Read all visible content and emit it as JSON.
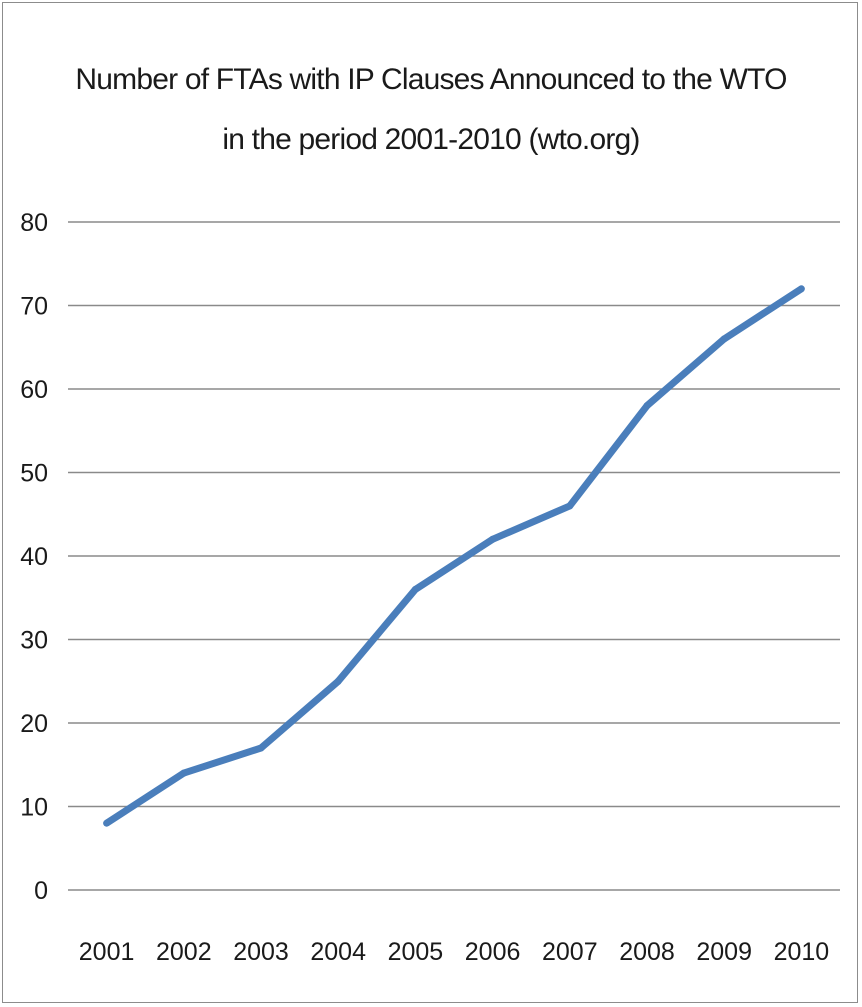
{
  "chart_data": {
    "type": "line",
    "title": [
      "Number of FTAs with IP Clauses Announced to the WTO",
      "in the period 2001-2010  (wto.org)"
    ],
    "categories": [
      "2001",
      "2002",
      "2003",
      "2004",
      "2005",
      "2006",
      "2007",
      "2008",
      "2009",
      "2010"
    ],
    "series": [
      {
        "values": [
          8,
          14,
          17,
          25,
          36,
          42,
          46,
          58,
          66,
          72
        ]
      }
    ],
    "ylim": [
      0,
      80
    ],
    "yticks": [
      "0",
      "10",
      "20",
      "30",
      "40",
      "50",
      "60",
      "70",
      "80"
    ],
    "grid": true,
    "legend": "none",
    "colors": {
      "line": "#4a7ebb",
      "grid": "#8a8a8a"
    }
  }
}
